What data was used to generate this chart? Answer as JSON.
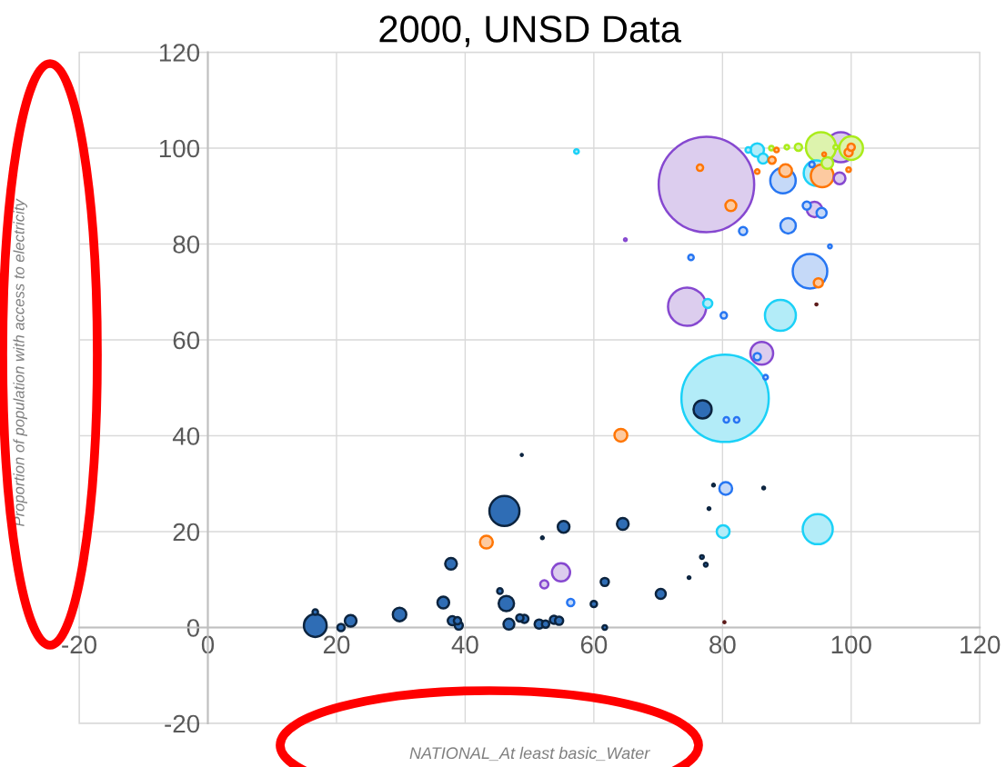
{
  "chart_data": {
    "type": "bubble",
    "title": "2000, UNSD Data",
    "xlabel": "NATIONAL_At least basic_Water",
    "ylabel": "Proportion of population with access to electricity",
    "xlim": [
      -20,
      120
    ],
    "xticks": [
      -20,
      0,
      20,
      40,
      60,
      80,
      100,
      120
    ],
    "ylim": [
      -20,
      120
    ],
    "yticks": [
      -20,
      0,
      20,
      40,
      60,
      80,
      100,
      120
    ],
    "grid": true,
    "legend": false,
    "series": [
      {
        "color": "#2f6db5",
        "x": [
          16.7,
          16.7,
          20.7,
          22.2,
          29.8,
          36.6,
          37.8,
          38.0,
          38.8,
          39.0,
          46.1,
          55.3,
          64.5,
          45.4,
          46.4,
          46.8,
          48.5,
          49.2,
          51.5,
          52.5,
          53.8,
          54.6,
          61.7,
          60.0,
          61.7,
          70.4,
          48.8,
          52.0,
          76.9,
          78.6,
          77.9,
          76.8,
          77.4,
          74.8,
          86.4
        ],
        "values": [
          0.4,
          3.2,
          0.0,
          1.4,
          2.7,
          5.2,
          13.3,
          1.4,
          1.4,
          0.4,
          24.3,
          21.0,
          21.6,
          7.6,
          5.0,
          0.7,
          2.0,
          1.8,
          0.7,
          0.7,
          1.6,
          1.4,
          9.5,
          4.9,
          0.0,
          7.0,
          36.0,
          18.7,
          45.5,
          29.7,
          24.8,
          14.7,
          13.1,
          10.4,
          29.1
        ],
        "sizes": [
          0.057,
          0.0033,
          0.0058,
          0.015,
          0.02,
          0.015,
          0.015,
          0.0091,
          0.0058,
          0.0073,
          0.099,
          0.015,
          0.015,
          0.0033,
          0.026,
          0.013,
          0.0058,
          0.0073,
          0.0091,
          0.0058,
          0.0073,
          0.0073,
          0.0073,
          0.0044,
          0.0023,
          0.011,
          0.0004,
          0.0008,
          0.036,
          0.0008,
          0.0008,
          0.0015,
          0.0015,
          0.0008,
          0.0008
        ]
      },
      {
        "color": "#c5d9f8",
        "x": [
          80.5,
          56.4,
          89.4,
          90.2,
          83.2,
          75.1,
          93.6,
          80.2,
          85.4,
          86.7,
          80.6,
          82.2,
          93.1,
          95.4,
          96.7,
          93.9
        ],
        "values": [
          29.0,
          5.2,
          93.2,
          83.8,
          82.7,
          77.2,
          74.3,
          65.1,
          56.5,
          52.2,
          43.3,
          43.3,
          88.0,
          86.5,
          79.5,
          96.6
        ],
        "sizes": [
          0.018,
          0.0058,
          0.071,
          0.026,
          0.0073,
          0.0033,
          0.131,
          0.0044,
          0.0058,
          0.0023,
          0.0033,
          0.0033,
          0.0073,
          0.011,
          0.0015,
          0.0033
        ]
      },
      {
        "color": "#b3ecf8",
        "x": [
          80.4,
          89.0,
          94.8,
          80.1,
          77.7,
          85.4,
          86.3,
          84.0,
          57.3,
          94.6
        ],
        "values": [
          47.8,
          65.1,
          20.5,
          20.0,
          67.6,
          99.6,
          97.8,
          99.6,
          99.3,
          94.8
        ],
        "sizes": [
          0.836,
          0.105,
          0.099,
          0.018,
          0.0091,
          0.02,
          0.011,
          0.0033,
          0.0023,
          0.071
        ]
      },
      {
        "color": "#dccdee",
        "x": [
          77.5,
          74.5,
          86.1,
          54.9,
          52.3,
          94.3,
          98.2,
          98.4,
          64.9
        ],
        "values": [
          92.4,
          66.9,
          57.2,
          11.5,
          9.0,
          87.2,
          93.7,
          100.2,
          80.9
        ],
        "sizes": [
          1,
          0.16,
          0.057,
          0.036,
          0.0073,
          0.026,
          0.015,
          0.099,
          0.0008
        ]
      },
      {
        "color": "#ddf3ad",
        "x": [
          95.3,
          100.0,
          91.8,
          90.0,
          87.6,
          96.3,
          97.6
        ],
        "values": [
          100.2,
          100.0,
          100.2,
          100.2,
          100.0,
          96.9,
          100.2
        ],
        "sizes": [
          0.099,
          0.061,
          0.0058,
          0.0023,
          0.0023,
          0.015,
          0.0023
        ]
      },
      {
        "color": "#fdcaa0",
        "x": [
          64.2,
          43.3,
          81.3,
          76.5,
          89.8,
          95.5,
          87.7,
          85.4,
          88.4,
          94.9,
          95.8,
          99.6,
          100.0,
          99.6
        ],
        "values": [
          40.1,
          17.8,
          88.0,
          95.9,
          95.3,
          94.2,
          97.5,
          95.1,
          99.6,
          71.9,
          98.7,
          99.1,
          100.2,
          95.5
        ],
        "sizes": [
          0.018,
          0.018,
          0.013,
          0.0044,
          0.018,
          0.057,
          0.0058,
          0.0023,
          0.0023,
          0.0091,
          0.0015,
          0.0073,
          0.0058,
          0.0023
        ]
      },
      {
        "color": "#c0504d",
        "x": [
          80.3,
          94.6
        ],
        "values": [
          1.1,
          67.4
        ],
        "sizes": [
          0.0004,
          0.0004
        ]
      }
    ]
  }
}
